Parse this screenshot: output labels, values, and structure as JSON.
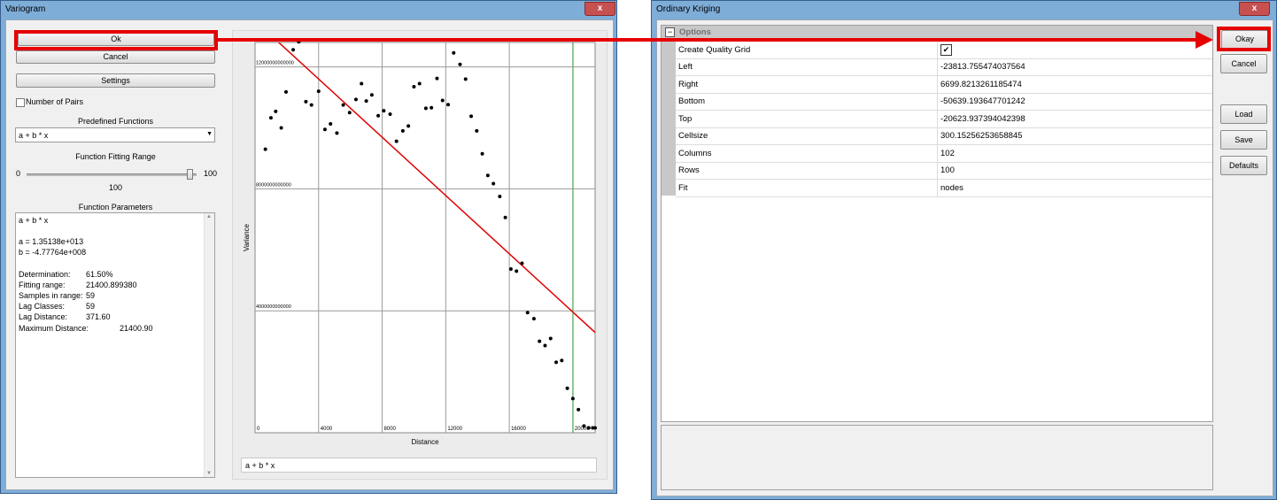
{
  "variogram": {
    "title": "Variogram",
    "close": "x",
    "ok_label": "Ok",
    "cancel_label": "Cancel",
    "settings_label": "Settings",
    "number_of_pairs_label": "Number of Pairs",
    "predefined_functions_label": "Predefined Functions",
    "predefined_function_value": "a + b * x",
    "fitting_range_label": "Function Fitting Range",
    "slider_min": "0",
    "slider_max": "100",
    "slider_value": "100",
    "slider_level": 1.0,
    "function_parameters_label": "Function Parameters",
    "params": {
      "formula": "a + b * x",
      "a": "a = 1.35138e+013",
      "b": "b = -4.77764e+008",
      "determination_label": "Determination:",
      "determination_value": "61.50%",
      "fitting_range_label": "Fitting range:",
      "fitting_range_value": "21400.899380",
      "samples_label": "Samples in range:",
      "samples_value": "59",
      "lag_classes_label": "Lag Classes:",
      "lag_classes_value": "59",
      "lag_distance_label": "Lag Distance:",
      "lag_distance_value": "371.60",
      "max_distance_label": "Maximum Distance:",
      "max_distance_value": "21400.90"
    },
    "formula_field": "a + b * x"
  },
  "chart_data": {
    "type": "scatter",
    "xlabel": "Distance",
    "ylabel": "Variance",
    "xlim": [
      0,
      21400
    ],
    "ylim": [
      0,
      12800000000000
    ],
    "x_ticks": [
      "0",
      "4000",
      "8000",
      "12000",
      "16000",
      "20000"
    ],
    "y_ticks": [
      "4000000000000",
      "8000000000000",
      "12000000000000"
    ],
    "grid": true,
    "fit_line": {
      "intercept": 13513800000000,
      "slope": -477764000
    },
    "points": [
      [
        650,
        9300000000000
      ],
      [
        1000,
        10330000000000
      ],
      [
        1300,
        10540000000000
      ],
      [
        1650,
        10000000000000
      ],
      [
        1950,
        11180000000000
      ],
      [
        2400,
        12560000000000
      ],
      [
        2750,
        12820000000000
      ],
      [
        3200,
        10860000000000
      ],
      [
        3550,
        10750000000000
      ],
      [
        4000,
        11200000000000
      ],
      [
        4400,
        9950000000000
      ],
      [
        4750,
        10130000000000
      ],
      [
        5150,
        9830000000000
      ],
      [
        5550,
        10750000000000
      ],
      [
        5950,
        10500000000000
      ],
      [
        6350,
        10930000000000
      ],
      [
        6700,
        11450000000000
      ],
      [
        7000,
        10880000000000
      ],
      [
        7350,
        11080000000000
      ],
      [
        7750,
        10400000000000
      ],
      [
        8100,
        10560000000000
      ],
      [
        8500,
        10450000000000
      ],
      [
        8900,
        9560000000000
      ],
      [
        9300,
        9900000000000
      ],
      [
        9650,
        10060000000000
      ],
      [
        10000,
        11350000000000
      ],
      [
        10350,
        11450000000000
      ],
      [
        10750,
        10640000000000
      ],
      [
        11100,
        10660000000000
      ],
      [
        11450,
        11620000000000
      ],
      [
        11800,
        10900000000000
      ],
      [
        12150,
        10760000000000
      ],
      [
        12500,
        12460000000000
      ],
      [
        12900,
        12080000000000
      ],
      [
        13250,
        11600000000000
      ],
      [
        13600,
        10380000000000
      ],
      [
        13950,
        9900000000000
      ],
      [
        14300,
        9150000000000
      ],
      [
        14650,
        8440000000000
      ],
      [
        15000,
        8170000000000
      ],
      [
        15400,
        7750000000000
      ],
      [
        15750,
        7060000000000
      ],
      [
        16100,
        5370000000000
      ],
      [
        16450,
        5300000000000
      ],
      [
        16800,
        5560000000000
      ],
      [
        17150,
        3940000000000
      ],
      [
        17550,
        3740000000000
      ],
      [
        17900,
        3000000000000
      ],
      [
        18250,
        2860000000000
      ],
      [
        18600,
        3090000000000
      ],
      [
        18950,
        2310000000000
      ],
      [
        19300,
        2370000000000
      ],
      [
        19650,
        1460000000000
      ],
      [
        20000,
        1120000000000
      ],
      [
        20350,
        760000000000
      ],
      [
        20700,
        220000000000
      ],
      [
        21000,
        160000000000
      ],
      [
        21250,
        160000000000
      ],
      [
        21400,
        160000000000
      ]
    ]
  },
  "kriging": {
    "title": "Ordinary Kriging",
    "close": "x",
    "options_label": "Options",
    "collapse_symbol": "−",
    "rows": [
      {
        "label": "Create Quality Grid",
        "value": "✔"
      },
      {
        "label": "Left",
        "value": "-23813.755474037564"
      },
      {
        "label": "Right",
        "value": "6699.8213261185474"
      },
      {
        "label": "Bottom",
        "value": "-50639.193647701242"
      },
      {
        "label": "Top",
        "value": "-20623.937394042398"
      },
      {
        "label": "Cellsize",
        "value": "300.15256253658845"
      },
      {
        "label": "Columns",
        "value": "102"
      },
      {
        "label": "Rows",
        "value": "100"
      },
      {
        "label": "Fit",
        "value": "nodes"
      }
    ],
    "okay_label": "Okay",
    "cancel_label": "Cancel",
    "load_label": "Load",
    "save_label": "Save",
    "defaults_label": "Defaults"
  },
  "colors": {
    "highlight": "#e60000",
    "fit_line": "#e00000",
    "title_blue": "#7eadd8"
  }
}
